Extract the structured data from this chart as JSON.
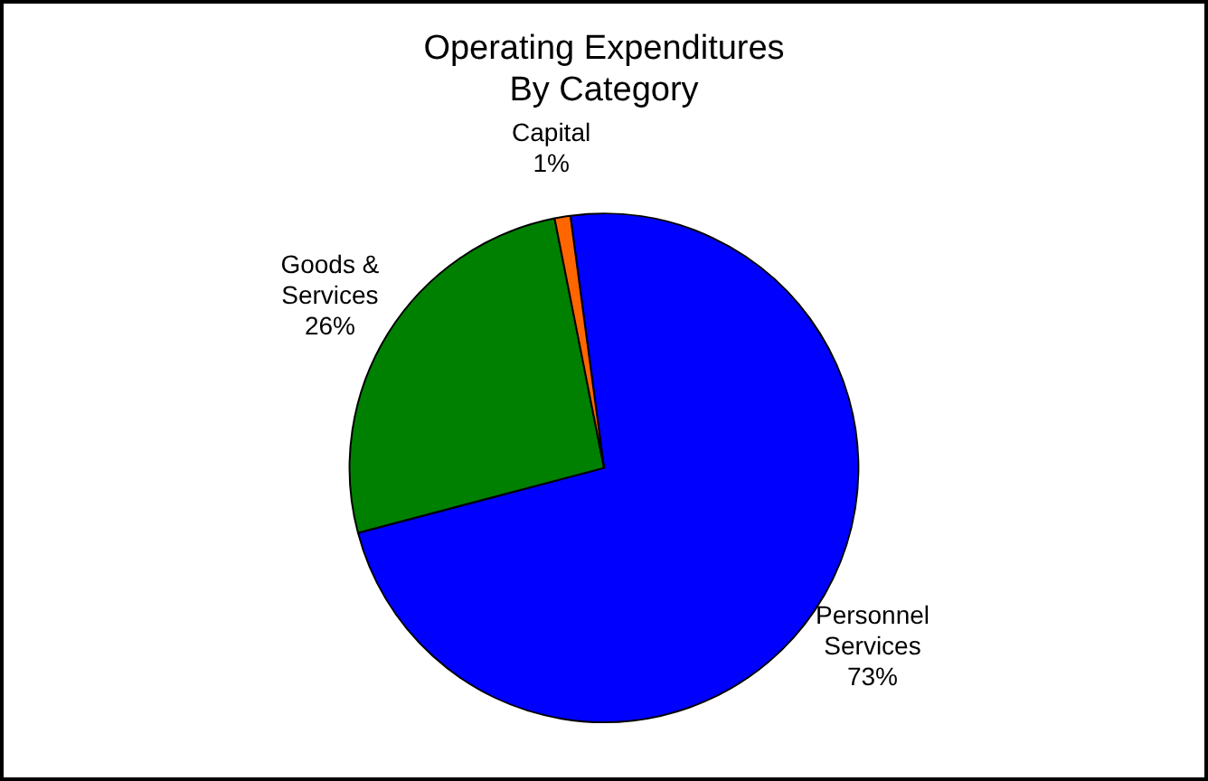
{
  "chart_data": {
    "type": "pie",
    "title": "Operating Expenditures\nBy Category",
    "categories": [
      "Personnel Services",
      "Goods & Services",
      "Capital"
    ],
    "values": [
      73,
      26,
      1
    ],
    "colors": [
      "#0000ff",
      "#008000",
      "#ff6600"
    ],
    "value_labels": [
      "73%",
      "26%",
      "1%"
    ],
    "legend": false
  }
}
